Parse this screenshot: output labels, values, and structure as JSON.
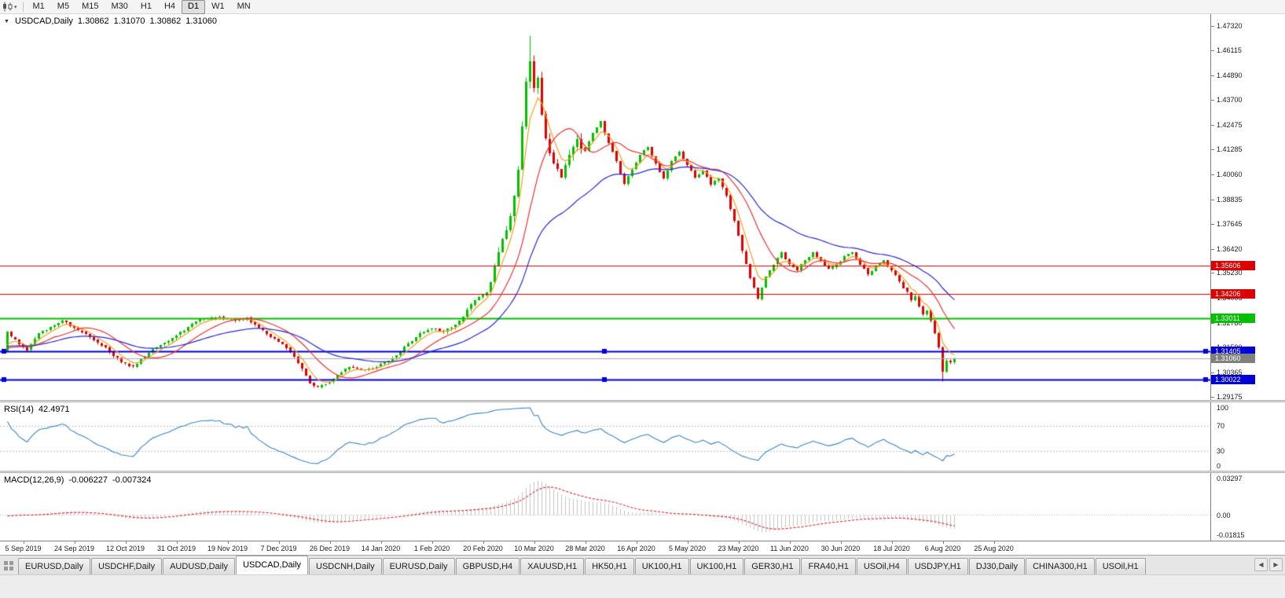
{
  "toolbar": {
    "timeframes": [
      "M1",
      "M5",
      "M15",
      "M30",
      "H1",
      "H4",
      "D1",
      "W1",
      "MN"
    ],
    "active_timeframe": "D1"
  },
  "chart_header": {
    "symbol": "USDCAD,Daily",
    "open": "1.30862",
    "high": "1.31070",
    "low": "1.30862",
    "close": "1.31060"
  },
  "price_scale": {
    "labels": [
      "1.47320",
      "1.46115",
      "1.44890",
      "1.43700",
      "1.42475",
      "1.41285",
      "1.40060",
      "1.38835",
      "1.37645",
      "1.36420",
      "1.35230",
      "1.34005",
      "1.32780",
      "1.31590",
      "1.30365",
      "1.29175"
    ]
  },
  "hlines": [
    {
      "price": 1.35606,
      "label": "1.35606",
      "color": "#dd0000",
      "width": 1,
      "selected": false
    },
    {
      "price": 1.34206,
      "label": "1.34206",
      "color": "#dd0000",
      "width": 1,
      "selected": false
    },
    {
      "price": 1.33011,
      "label": "1.33011",
      "color": "#00c000",
      "width": 2,
      "selected": false
    },
    {
      "price": 1.31405,
      "label": "1.31405",
      "color": "#0000d8",
      "width": 2,
      "selected": true
    },
    {
      "price": 1.30022,
      "label": "1.30022",
      "color": "#0000d8",
      "width": 2,
      "selected": true
    }
  ],
  "current_price_marker": {
    "price": 1.3106,
    "label": "1.31060",
    "color": "#808080"
  },
  "rsi_panel": {
    "title": "RSI(14)",
    "value": "42.4971",
    "levels": [
      "100",
      "70",
      "30",
      "0"
    ],
    "line_color": "#3c85c6"
  },
  "macd_panel": {
    "title": "MACD(12,26,9)",
    "value_main": "-0.006227",
    "value_signal": "-0.007324",
    "scale": [
      "0.03297",
      "0.00",
      "-0.01815"
    ]
  },
  "time_axis": [
    "5 Sep 2019",
    "24 Sep 2019",
    "12 Oct 2019",
    "31 Oct 2019",
    "19 Nov 2019",
    "7 Dec 2019",
    "26 Dec 2019",
    "14 Jan 2020",
    "1 Feb 2020",
    "20 Feb 2020",
    "10 Mar 2020",
    "28 Mar 2020",
    "16 Apr 2020",
    "5 May 2020",
    "23 May 2020",
    "11 Jun 2020",
    "30 Jun 2020",
    "18 Jul 2020",
    "6 Aug 2020",
    "25 Aug 2020"
  ],
  "tabs": {
    "items": [
      "EURUSD,Daily",
      "USDCHF,Daily",
      "AUDUSD,Daily",
      "USDCAD,Daily",
      "USDCNH,Daily",
      "EURUSD,Daily",
      "GBPUSD,H4",
      "XAUUSD,H1",
      "HK50,H1",
      "UK100,H1",
      "UK100,H1",
      "GER30,H1",
      "FRA40,H1",
      "USOil,H4",
      "USDJPY,H1",
      "DJ30,Daily",
      "CHINA300,H1",
      "USOil,H1"
    ],
    "active_index": 3
  },
  "chart_data": {
    "type": "candlestick",
    "symbol": "USDCAD",
    "period": "Daily",
    "ohlc_current": {
      "open": 1.30862,
      "high": 1.3107,
      "low": 1.30862,
      "close": 1.3106
    },
    "y_range": {
      "min": 1.29175,
      "max": 1.4732
    },
    "bars_visible": 242,
    "pre_history_price": 1.3225,
    "colors": {
      "up": "#00c000",
      "down": "#e00000"
    },
    "close_anchors": [
      [
        0,
        1.3235
      ],
      [
        3,
        1.3175
      ],
      [
        5,
        1.3145
      ],
      [
        8,
        1.323
      ],
      [
        11,
        1.326
      ],
      [
        14,
        1.329
      ],
      [
        17,
        1.3255
      ],
      [
        20,
        1.3225
      ],
      [
        23,
        1.318
      ],
      [
        26,
        1.314
      ],
      [
        29,
        1.3085
      ],
      [
        32,
        1.3065
      ],
      [
        35,
        1.3115
      ],
      [
        38,
        1.316
      ],
      [
        41,
        1.319
      ],
      [
        44,
        1.3235
      ],
      [
        47,
        1.3275
      ],
      [
        50,
        1.33
      ],
      [
        54,
        1.331
      ],
      [
        58,
        1.329
      ],
      [
        61,
        1.3305
      ],
      [
        64,
        1.3255
      ],
      [
        67,
        1.321
      ],
      [
        70,
        1.3175
      ],
      [
        73,
        1.3115
      ],
      [
        75,
        1.3055
      ],
      [
        77,
        1.2985
      ],
      [
        79,
        1.2965
      ],
      [
        81,
        1.298
      ],
      [
        84,
        1.3025
      ],
      [
        87,
        1.3065
      ],
      [
        90,
        1.305
      ],
      [
        93,
        1.3055
      ],
      [
        96,
        1.3085
      ],
      [
        99,
        1.312
      ],
      [
        102,
        1.318
      ],
      [
        105,
        1.323
      ],
      [
        108,
        1.325
      ],
      [
        111,
        1.3235
      ],
      [
        114,
        1.327
      ],
      [
        116,
        1.331
      ],
      [
        118,
        1.337
      ],
      [
        120,
        1.3405
      ],
      [
        122,
        1.343
      ],
      [
        124,
        1.356
      ],
      [
        126,
        1.369
      ],
      [
        128,
        1.38
      ],
      [
        129,
        1.39
      ],
      [
        130,
        1.403
      ],
      [
        131,
        1.424
      ],
      [
        132,
        1.446
      ],
      [
        133,
        1.456
      ],
      [
        134,
        1.443
      ],
      [
        135,
        1.448
      ],
      [
        136,
        1.43
      ],
      [
        137,
        1.418
      ],
      [
        139,
        1.406
      ],
      [
        141,
        1.399
      ],
      [
        143,
        1.41
      ],
      [
        145,
        1.418
      ],
      [
        147,
        1.412
      ],
      [
        149,
        1.421
      ],
      [
        151,
        1.4265
      ],
      [
        153,
        1.416
      ],
      [
        155,
        1.407
      ],
      [
        157,
        1.396
      ],
      [
        159,
        1.403
      ],
      [
        161,
        1.41
      ],
      [
        163,
        1.414
      ],
      [
        165,
        1.406
      ],
      [
        167,
        1.3985
      ],
      [
        169,
        1.407
      ],
      [
        171,
        1.4115
      ],
      [
        173,
        1.405
      ],
      [
        175,
        1.399
      ],
      [
        177,
        1.4025
      ],
      [
        179,
        1.3955
      ],
      [
        181,
        1.3985
      ],
      [
        183,
        1.3905
      ],
      [
        185,
        1.378
      ],
      [
        187,
        1.363
      ],
      [
        189,
        1.35
      ],
      [
        191,
        1.3395
      ],
      [
        193,
        1.3505
      ],
      [
        195,
        1.3565
      ],
      [
        197,
        1.3625
      ],
      [
        199,
        1.3565
      ],
      [
        201,
        1.3535
      ],
      [
        203,
        1.3585
      ],
      [
        205,
        1.3625
      ],
      [
        207,
        1.3585
      ],
      [
        209,
        1.3545
      ],
      [
        211,
        1.3565
      ],
      [
        213,
        1.3605
      ],
      [
        215,
        1.3625
      ],
      [
        217,
        1.3565
      ],
      [
        219,
        1.3515
      ],
      [
        221,
        1.3555
      ],
      [
        223,
        1.3585
      ],
      [
        225,
        1.3535
      ],
      [
        227,
        1.348
      ],
      [
        229,
        1.343
      ],
      [
        230,
        1.339
      ],
      [
        231,
        1.341
      ],
      [
        232,
        1.336
      ],
      [
        233,
        1.332
      ],
      [
        234,
        1.334
      ],
      [
        235,
        1.329
      ],
      [
        236,
        1.323
      ],
      [
        237,
        1.316
      ],
      [
        238,
        1.304
      ],
      [
        239,
        1.3095
      ],
      [
        240,
        1.3086
      ],
      [
        241,
        1.3106
      ]
    ],
    "spike": {
      "bar": 133,
      "high": 1.4685
    },
    "final_low": {
      "bar": 238,
      "low": 1.2995
    },
    "moving_averages": [
      {
        "kind": "ema",
        "period": 5,
        "color": "#f5a020"
      },
      {
        "kind": "sma",
        "period": 13,
        "color": "#ee3333"
      },
      {
        "kind": "ema",
        "period": 34,
        "color": "#2929d6"
      }
    ],
    "indicators": [
      {
        "name": "RSI",
        "period": 14,
        "current": 42.4971,
        "levels": [
          70,
          30
        ]
      },
      {
        "name": "MACD",
        "fast": 12,
        "slow": 26,
        "signal": 9,
        "current": -0.006227,
        "current_signal": -0.007324,
        "scale_max": 0.03297,
        "scale_min": -0.01815
      }
    ],
    "horizontal_lines": [
      1.35606,
      1.34206,
      1.33011,
      1.31405,
      1.30022
    ]
  }
}
